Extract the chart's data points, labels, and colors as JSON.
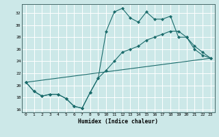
{
  "xlabel": "Humidex (Indice chaleur)",
  "ylabel": "",
  "xlim": [
    -0.5,
    23.5
  ],
  "ylim": [
    15.5,
    33.5
  ],
  "xticks": [
    0,
    1,
    2,
    3,
    4,
    5,
    6,
    7,
    8,
    9,
    10,
    11,
    12,
    13,
    14,
    15,
    16,
    17,
    18,
    19,
    20,
    21,
    22,
    23
  ],
  "yticks": [
    16,
    18,
    20,
    22,
    24,
    26,
    28,
    30,
    32
  ],
  "bg_color": "#cce8e8",
  "grid_color": "#ffffff",
  "line_color": "#1a6b6b",
  "line1_x": [
    0,
    1,
    2,
    3,
    4,
    5,
    6,
    7,
    8,
    9,
    10,
    11,
    12,
    13,
    14,
    15,
    16,
    17,
    18,
    19,
    20,
    21,
    22,
    23
  ],
  "line1_y": [
    20.5,
    19.0,
    18.2,
    18.5,
    18.5,
    17.8,
    16.5,
    16.2,
    18.8,
    21.2,
    29.0,
    32.2,
    32.8,
    31.2,
    30.5,
    32.2,
    31.0,
    31.0,
    31.5,
    28.0,
    28.0,
    26.0,
    25.0,
    24.5
  ],
  "line2_x": [
    0,
    1,
    2,
    3,
    4,
    5,
    6,
    7,
    8,
    9,
    10,
    11,
    12,
    13,
    14,
    15,
    16,
    17,
    18,
    19,
    20,
    21,
    22,
    23
  ],
  "line2_y": [
    20.5,
    19.0,
    18.2,
    18.5,
    18.5,
    17.8,
    16.5,
    16.2,
    18.8,
    21.2,
    22.5,
    24.0,
    25.5,
    26.0,
    26.5,
    27.5,
    28.0,
    28.5,
    29.0,
    29.0,
    28.0,
    26.5,
    25.5,
    24.5
  ],
  "line3_x": [
    0,
    23
  ],
  "line3_y": [
    20.5,
    24.5
  ],
  "marker": "D",
  "markersize": 2.2
}
